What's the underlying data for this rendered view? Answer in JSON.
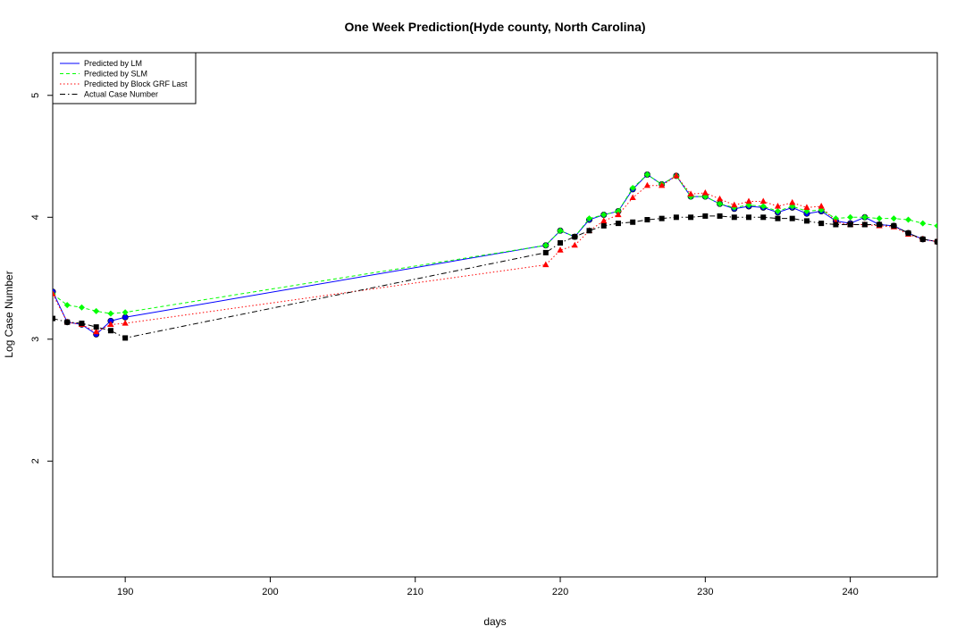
{
  "chart_data": {
    "type": "line",
    "title": "One Week Prediction(Hyde county, North Carolina)",
    "xlabel": "days",
    "ylabel": "Log Case Number",
    "xlim": [
      185,
      246
    ],
    "ylim": [
      1.05,
      5.35
    ],
    "xticks": [
      190,
      200,
      210,
      220,
      230,
      240
    ],
    "yticks": [
      2,
      3,
      4,
      5
    ],
    "grid": false,
    "legend_position": "top-left",
    "x": [
      185,
      186,
      187,
      188,
      189,
      190,
      219,
      220,
      221,
      222,
      223,
      224,
      225,
      226,
      227,
      228,
      229,
      230,
      231,
      232,
      233,
      234,
      235,
      236,
      237,
      238,
      239,
      240,
      241,
      242,
      243,
      244,
      245,
      246
    ],
    "series": [
      {
        "name": "Predicted by LM",
        "color": "#0000ff",
        "dash": "solid",
        "marker": "circle",
        "values": [
          3.39,
          3.14,
          3.12,
          3.04,
          3.15,
          3.18,
          3.77,
          3.89,
          3.84,
          3.98,
          4.02,
          4.05,
          4.23,
          4.35,
          4.27,
          4.34,
          4.17,
          4.17,
          4.11,
          4.07,
          4.09,
          4.08,
          4.04,
          4.08,
          4.03,
          4.05,
          3.97,
          3.95,
          4.0,
          3.94,
          3.93,
          3.87,
          3.82,
          3.8
        ]
      },
      {
        "name": "Predicted by SLM",
        "color": "#00ff00",
        "dash": "dash",
        "marker": "diamond",
        "values": [
          3.37,
          3.28,
          3.26,
          3.23,
          3.21,
          3.22,
          3.77,
          3.89,
          3.84,
          3.99,
          4.02,
          4.05,
          4.24,
          4.35,
          4.27,
          4.34,
          4.17,
          4.17,
          4.11,
          4.08,
          4.1,
          4.09,
          4.05,
          4.09,
          4.05,
          4.06,
          3.99,
          4.0,
          4.0,
          3.99,
          3.99,
          3.98,
          3.95,
          3.93
        ]
      },
      {
        "name": "Predicted by Block GRF Last",
        "color": "#ff0000",
        "dash": "dot",
        "marker": "triangle",
        "values": [
          3.37,
          3.14,
          3.12,
          3.06,
          3.12,
          3.13,
          3.61,
          3.73,
          3.77,
          3.89,
          3.97,
          4.02,
          4.16,
          4.26,
          4.26,
          4.34,
          4.19,
          4.2,
          4.15,
          4.1,
          4.13,
          4.13,
          4.09,
          4.12,
          4.08,
          4.09,
          3.96,
          3.94,
          3.94,
          3.93,
          3.92,
          3.86,
          3.82,
          3.8
        ]
      },
      {
        "name": "Actual Case Number",
        "color": "#000000",
        "dash": "dashdot",
        "marker": "square",
        "values": [
          3.17,
          3.14,
          3.13,
          3.1,
          3.07,
          3.01,
          3.71,
          3.79,
          3.84,
          3.89,
          3.93,
          3.95,
          3.96,
          3.98,
          3.99,
          4.0,
          4.0,
          4.01,
          4.01,
          4.0,
          4.0,
          4.0,
          3.99,
          3.99,
          3.97,
          3.95,
          3.94,
          3.94,
          3.94,
          3.94,
          3.93,
          3.87,
          3.82,
          3.8
        ]
      }
    ]
  }
}
